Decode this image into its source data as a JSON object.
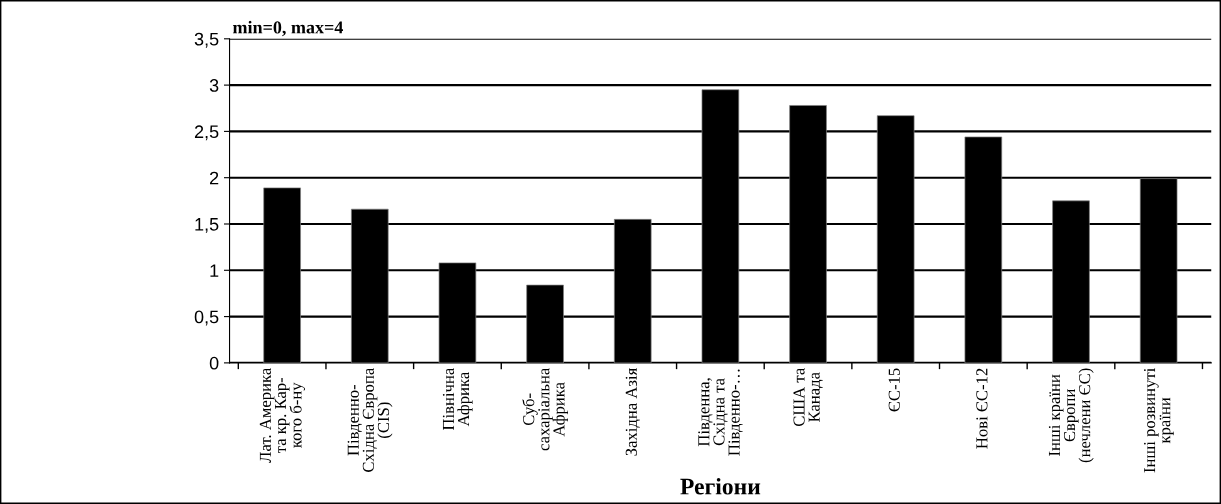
{
  "chart_data": {
    "type": "bar",
    "xlabel": "Регіони",
    "annotations": [
      "min=0, max=4"
    ],
    "categories": [
      "Лат. Америка\nта кр. Кар-\nкого б-ну",
      "Південно-\nСхідна Європа\n(CIS)",
      "Північна\nАфрика",
      "Суб-\nсахаріальна\nАфрика",
      "Західна Азія",
      "Південна,\nСхідна та\nПівденно-…",
      "США та\nКанада",
      "ЄС-15",
      "Нові ЄС-12",
      "Інші країни\nЄвропи\n(нечлени ЄС)",
      "Інші розвинуті\nкраїни"
    ],
    "values": [
      1.89,
      1.66,
      1.08,
      0.84,
      1.55,
      2.95,
      2.78,
      2.67,
      2.44,
      1.75,
      1.99
    ],
    "color": "#000000",
    "ylim": [
      0,
      3.5
    ],
    "yticks": [
      0,
      {
        "value": 0.5,
        "label": "0,5"
      },
      1,
      {
        "value": 1.5,
        "label": "1,5"
      },
      2,
      {
        "value": 2.5,
        "label": "2,5"
      },
      3,
      {
        "value": 3.5,
        "label": "3,5"
      }
    ],
    "grid": "y",
    "legend": false
  }
}
